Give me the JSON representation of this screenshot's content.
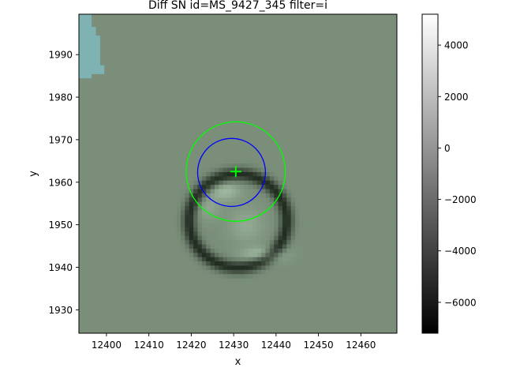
{
  "chart_data": {
    "type": "heatmap",
    "title": "Diff SN id=MS_9427_345 filter=i",
    "xlabel": "x",
    "ylabel": "y",
    "xlim": [
      12393.5,
      12468.5
    ],
    "ylim": [
      1924.5,
      1999.5
    ],
    "x_ticks": [
      12400,
      12410,
      12420,
      12430,
      12440,
      12450,
      12460
    ],
    "y_ticks": [
      1930,
      1940,
      1950,
      1960,
      1970,
      1980,
      1990
    ],
    "colorbar": {
      "cmap": "gray",
      "range": [
        -7200,
        5200
      ],
      "ticks": [
        4000,
        2000,
        0,
        -2000,
        -4000,
        -6000
      ],
      "tick_labels": [
        "4000",
        "2000",
        "0",
        "−2000",
        "−4000",
        "−6000"
      ]
    },
    "background_value": -200,
    "overlay_tint": "#5e8a5e",
    "masked_region_color": "#7fb3b3",
    "masked_region": [
      {
        "y": 1999,
        "x0": 12394,
        "x1": 12396
      },
      {
        "y": 1998,
        "x0": 12394,
        "x1": 12396
      },
      {
        "y": 1997,
        "x0": 12394,
        "x1": 12396
      },
      {
        "y": 1996,
        "x0": 12394,
        "x1": 12397
      },
      {
        "y": 1995,
        "x0": 12394,
        "x1": 12397
      },
      {
        "y": 1994,
        "x0": 12394,
        "x1": 12398
      },
      {
        "y": 1993,
        "x0": 12394,
        "x1": 12398
      },
      {
        "y": 1992,
        "x0": 12394,
        "x1": 12398
      },
      {
        "y": 1991,
        "x0": 12394,
        "x1": 12398
      },
      {
        "y": 1990,
        "x0": 12394,
        "x1": 12398
      },
      {
        "y": 1989,
        "x0": 12394,
        "x1": 12398
      },
      {
        "y": 1988,
        "x0": 12394,
        "x1": 12398
      },
      {
        "y": 1987,
        "x0": 12394,
        "x1": 12399
      },
      {
        "y": 1986,
        "x0": 12394,
        "x1": 12399
      },
      {
        "y": 1985,
        "x0": 12394,
        "x1": 12396
      }
    ],
    "residual_features": [
      {
        "kind": "negative_ring",
        "cx": 12431,
        "cy": 1951,
        "r": 11.5,
        "width": 1.6,
        "amp": -6000
      },
      {
        "kind": "positive_blob",
        "cx": 12428,
        "cy": 1958,
        "sx": 2.5,
        "sy": 1.5,
        "amp": 2500
      },
      {
        "kind": "positive_blob",
        "cx": 12433,
        "cy": 1950,
        "sx": 3.0,
        "sy": 3.0,
        "amp": 1600
      },
      {
        "kind": "positive_blob",
        "cx": 12437,
        "cy": 1943,
        "sx": 3.5,
        "sy": 1.2,
        "amp": 3000
      },
      {
        "kind": "positive_blob",
        "cx": 12424,
        "cy": 1954,
        "sx": 2.0,
        "sy": 2.0,
        "amp": 1400
      }
    ],
    "overlays": [
      {
        "kind": "circle",
        "cx": 12430.5,
        "cy": 1962.5,
        "r": 11.7,
        "color": "#00ff00"
      },
      {
        "kind": "circle",
        "cx": 12429.5,
        "cy": 1962.3,
        "r": 8.0,
        "color": "#0000ff"
      },
      {
        "kind": "plus_marker",
        "x": 12430.5,
        "y": 1962.5,
        "color": "#00ff00"
      }
    ]
  }
}
